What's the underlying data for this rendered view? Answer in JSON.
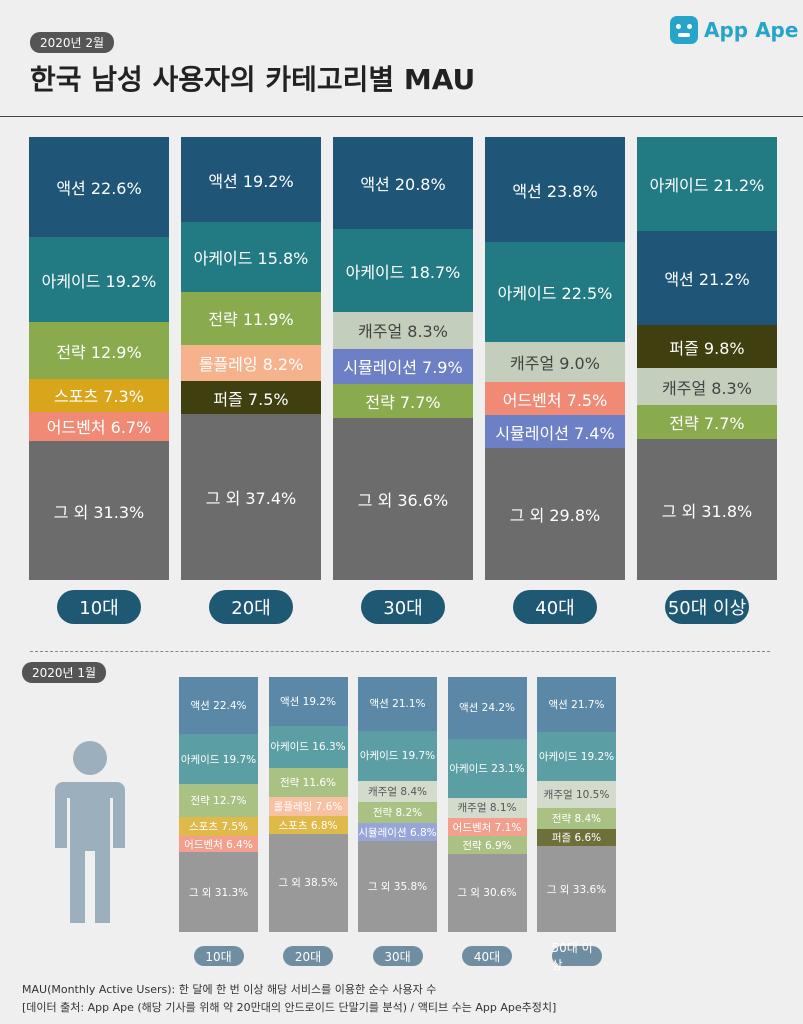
{
  "header": {
    "date_badge": "2020년 2월",
    "title": "한국 남성 사용자의 카테고리별 MAU",
    "logo_text": "App Ape"
  },
  "section2": {
    "date_badge": "2020년 1월"
  },
  "footnotes": {
    "line1": "MAU(Monthly Active Users):  한 달에 한 번 이상 해당 서비스를 이용한 순수 사용자 수",
    "line2": "[데이터 출처: App Ape (해당 기사를 위해 약 20만대의 안드로이드 단말기를 분석) / 액티브 수는 App Ape추정치]"
  },
  "colors": {
    "액션": "#1f5577",
    "아케이드": "#227b83",
    "전략": "#8aaa4e",
    "스포츠": "#d8a51b",
    "어드벤처": "#f08a75",
    "롤플레잉": "#f6b28d",
    "퍼즐": "#3f3f10",
    "캐주얼": "#c3cfbc",
    "시뮬레이션": "#6d80c6",
    "그 외": "#6c6c6c"
  },
  "colors_small": {
    "액션": "#5b88a6",
    "아케이드": "#5b9ea4",
    "전략": "#a9c283",
    "스포츠": "#dfb94a",
    "어드벤처": "#f29f8e",
    "롤플레잉": "#f7c2a3",
    "퍼즐": "#6f6f3a",
    "캐주얼": "#d3dbcd",
    "시뮬레이션": "#97a5d9",
    "그 외": "#999999"
  },
  "chart_data": [
    {
      "type": "bar",
      "stacked": true,
      "title": "한국 남성 사용자의 카테고리별 MAU",
      "period": "2020년 2월",
      "unit": "%",
      "categories": [
        "10대",
        "20대",
        "30대",
        "40대",
        "50대 이상"
      ],
      "stacks": [
        [
          {
            "cat": "액션",
            "value": 22.6
          },
          {
            "cat": "아케이드",
            "value": 19.2
          },
          {
            "cat": "전략",
            "value": 12.9
          },
          {
            "cat": "스포츠",
            "value": 7.3
          },
          {
            "cat": "어드벤처",
            "value": 6.7
          },
          {
            "cat": "그 외",
            "value": 31.3
          }
        ],
        [
          {
            "cat": "액션",
            "value": 19.2
          },
          {
            "cat": "아케이드",
            "value": 15.8
          },
          {
            "cat": "전략",
            "value": 11.9
          },
          {
            "cat": "롤플레잉",
            "value": 8.2
          },
          {
            "cat": "퍼즐",
            "value": 7.5
          },
          {
            "cat": "그 외",
            "value": 37.4
          }
        ],
        [
          {
            "cat": "액션",
            "value": 20.8
          },
          {
            "cat": "아케이드",
            "value": 18.7
          },
          {
            "cat": "캐주얼",
            "value": 8.3
          },
          {
            "cat": "시뮬레이션",
            "value": 7.9
          },
          {
            "cat": "전략",
            "value": 7.7
          },
          {
            "cat": "그 외",
            "value": 36.6
          }
        ],
        [
          {
            "cat": "액션",
            "value": 23.8
          },
          {
            "cat": "아케이드",
            "value": 22.5
          },
          {
            "cat": "캐주얼",
            "value": 9.0
          },
          {
            "cat": "어드벤처",
            "value": 7.5
          },
          {
            "cat": "시뮬레이션",
            "value": 7.4
          },
          {
            "cat": "그 외",
            "value": 29.8
          }
        ],
        [
          {
            "cat": "아케이드",
            "value": 21.2
          },
          {
            "cat": "액션",
            "value": 21.2
          },
          {
            "cat": "퍼즐",
            "value": 9.8
          },
          {
            "cat": "캐주얼",
            "value": 8.3
          },
          {
            "cat": "전략",
            "value": 7.7
          },
          {
            "cat": "그 외",
            "value": 31.8
          }
        ]
      ]
    },
    {
      "type": "bar",
      "stacked": true,
      "period": "2020년 1월",
      "unit": "%",
      "categories": [
        "10대",
        "20대",
        "30대",
        "40대",
        "50대 이상"
      ],
      "stacks": [
        [
          {
            "cat": "액션",
            "value": 22.4
          },
          {
            "cat": "아케이드",
            "value": 19.7
          },
          {
            "cat": "전략",
            "value": 12.7
          },
          {
            "cat": "스포츠",
            "value": 7.5
          },
          {
            "cat": "어드벤처",
            "value": 6.4
          },
          {
            "cat": "그 외",
            "value": 31.3
          }
        ],
        [
          {
            "cat": "액션",
            "value": 19.2
          },
          {
            "cat": "아케이드",
            "value": 16.3
          },
          {
            "cat": "전략",
            "value": 11.6
          },
          {
            "cat": "롤플레잉",
            "value": 7.6
          },
          {
            "cat": "스포츠",
            "value": 6.8
          },
          {
            "cat": "그 외",
            "value": 38.5
          }
        ],
        [
          {
            "cat": "액션",
            "value": 21.1
          },
          {
            "cat": "아케이드",
            "value": 19.7
          },
          {
            "cat": "캐주얼",
            "value": 8.4
          },
          {
            "cat": "전략",
            "value": 8.2
          },
          {
            "cat": "시뮬레이션",
            "value": 6.8
          },
          {
            "cat": "그 외",
            "value": 35.8
          }
        ],
        [
          {
            "cat": "액션",
            "value": 24.2
          },
          {
            "cat": "아케이드",
            "value": 23.1
          },
          {
            "cat": "캐주얼",
            "value": 8.1
          },
          {
            "cat": "어드벤처",
            "value": 7.1
          },
          {
            "cat": "전략",
            "value": 6.9
          },
          {
            "cat": "그 외",
            "value": 30.6
          }
        ],
        [
          {
            "cat": "액션",
            "value": 21.7
          },
          {
            "cat": "아케이드",
            "value": 19.2
          },
          {
            "cat": "캐주얼",
            "value": 10.5
          },
          {
            "cat": "전략",
            "value": 8.4
          },
          {
            "cat": "퍼즐",
            "value": 6.6
          },
          {
            "cat": "그 외",
            "value": 33.6
          }
        ]
      ]
    }
  ]
}
